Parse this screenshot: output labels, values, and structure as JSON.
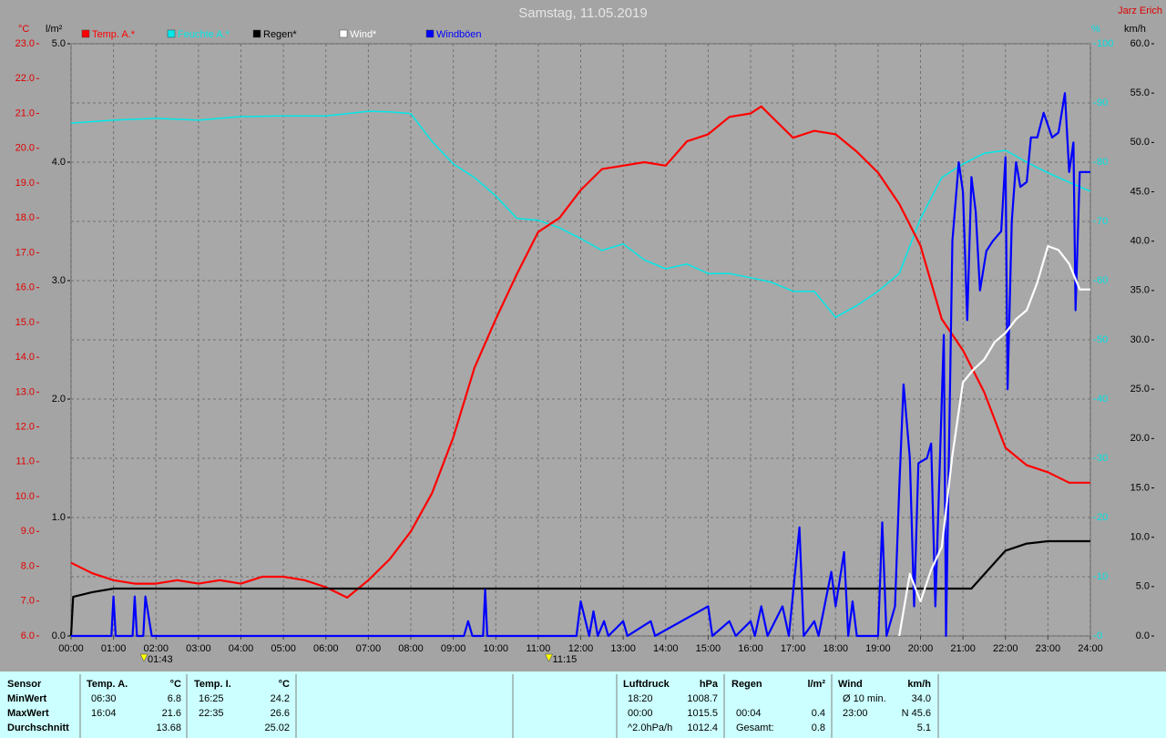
{
  "chart_data": {
    "type": "line",
    "title": "Samstag, 11.05.2019",
    "author": "Jarz Erich",
    "grid": true,
    "xlim": [
      0,
      24
    ],
    "xticks": [
      {
        "value": 0,
        "label": "00:00"
      },
      {
        "value": 1,
        "label": "01:00"
      },
      {
        "value": 2,
        "label": "02:00"
      },
      {
        "value": 3,
        "label": "03:00"
      },
      {
        "value": 4,
        "label": "04:00"
      },
      {
        "value": 5,
        "label": "05:00"
      },
      {
        "value": 6,
        "label": "06:00"
      },
      {
        "value": 7,
        "label": "07:00"
      },
      {
        "value": 8,
        "label": "08:00"
      },
      {
        "value": 9,
        "label": "09:00"
      },
      {
        "value": 10,
        "label": "10:00"
      },
      {
        "value": 11,
        "label": "11:00"
      },
      {
        "value": 12,
        "label": "12:00"
      },
      {
        "value": 13,
        "label": "13:00"
      },
      {
        "value": 14,
        "label": "14:00"
      },
      {
        "value": 15,
        "label": "15:00"
      },
      {
        "value": 16,
        "label": "16:00"
      },
      {
        "value": 17,
        "label": "17:00"
      },
      {
        "value": 18,
        "label": "18:00"
      },
      {
        "value": 19,
        "label": "19:00"
      },
      {
        "value": 20,
        "label": "20:00"
      },
      {
        "value": 21,
        "label": "21:00"
      },
      {
        "value": 22,
        "label": "22:00"
      },
      {
        "value": 23,
        "label": "23:00"
      },
      {
        "value": 24,
        "label": "24:00"
      }
    ],
    "axes": {
      "temp": {
        "unit": "°C",
        "color": "#e00000",
        "lim": [
          6,
          23
        ],
        "ticks": [
          {
            "value": 6,
            "label": "6.0"
          },
          {
            "value": 7,
            "label": "7.0"
          },
          {
            "value": 8,
            "label": "8.0"
          },
          {
            "value": 9,
            "label": "9.0"
          },
          {
            "value": 10,
            "label": "10.0"
          },
          {
            "value": 11,
            "label": "11.0"
          },
          {
            "value": 12,
            "label": "12.0"
          },
          {
            "value": 13,
            "label": "13.0"
          },
          {
            "value": 14,
            "label": "14.0"
          },
          {
            "value": 15,
            "label": "15.0"
          },
          {
            "value": 16,
            "label": "16.0"
          },
          {
            "value": 17,
            "label": "17.0"
          },
          {
            "value": 18,
            "label": "18.0"
          },
          {
            "value": 19,
            "label": "19.0"
          },
          {
            "value": 20,
            "label": "20.0"
          },
          {
            "value": 21,
            "label": "21.0"
          },
          {
            "value": 22,
            "label": "22.0"
          },
          {
            "value": 23,
            "label": "23.0"
          }
        ]
      },
      "rain": {
        "unit": "l/m²",
        "color": "#000000",
        "lim": [
          0,
          5
        ],
        "ticks": [
          {
            "value": 0,
            "label": "0.0"
          },
          {
            "value": 1,
            "label": "1.0"
          },
          {
            "value": 2,
            "label": "2.0"
          },
          {
            "value": 3,
            "label": "3.0"
          },
          {
            "value": 4,
            "label": "4.0"
          },
          {
            "value": 5,
            "label": "5.0"
          }
        ]
      },
      "humidity": {
        "unit": "%",
        "color": "#00e0e0",
        "lim": [
          0,
          100
        ],
        "ticks": [
          0,
          10,
          20,
          30,
          40,
          50,
          60,
          70,
          80,
          90,
          100
        ]
      },
      "wind": {
        "unit": "km/h",
        "color": "#000000",
        "lim": [
          0,
          60
        ],
        "ticks": [
          {
            "value": 0,
            "label": "0.0"
          },
          {
            "value": 5,
            "label": "5.0"
          },
          {
            "value": 10,
            "label": "10.0"
          },
          {
            "value": 15,
            "label": "15.0"
          },
          {
            "value": 20,
            "label": "20.0"
          },
          {
            "value": 25,
            "label": "25.0"
          },
          {
            "value": 30,
            "label": "30.0"
          },
          {
            "value": 35,
            "label": "35.0"
          },
          {
            "value": 40,
            "label": "40.0"
          },
          {
            "value": 45,
            "label": "45.0"
          },
          {
            "value": 50,
            "label": "50.0"
          },
          {
            "value": 55,
            "label": "55.0"
          },
          {
            "value": 60,
            "label": "60.0"
          }
        ]
      }
    },
    "series": [
      {
        "name": "Temp. A.*",
        "color": "#ff0000",
        "axis": "temp",
        "x": [
          0,
          0.5,
          1,
          1.5,
          2,
          2.5,
          3,
          3.5,
          4,
          4.5,
          5,
          5.5,
          6,
          6.5,
          7,
          7.5,
          8,
          8.5,
          9,
          9.5,
          10,
          10.5,
          11,
          11.5,
          12,
          12.5,
          13,
          13.5,
          14,
          14.5,
          15,
          15.5,
          16,
          16.25,
          16.5,
          17,
          17.5,
          18,
          18.5,
          19,
          19.5,
          20,
          20.5,
          21,
          21.5,
          22,
          22.5,
          23,
          23.5,
          24
        ],
        "values": [
          8.1,
          7.8,
          7.6,
          7.5,
          7.5,
          7.6,
          7.5,
          7.6,
          7.5,
          7.7,
          7.7,
          7.6,
          7.4,
          7.1,
          7.6,
          8.2,
          9.0,
          10.1,
          11.7,
          13.7,
          15.1,
          16.4,
          17.6,
          18.0,
          18.8,
          19.4,
          19.5,
          19.6,
          19.5,
          20.2,
          20.4,
          20.9,
          21.0,
          21.2,
          20.9,
          20.3,
          20.5,
          20.4,
          19.9,
          19.3,
          18.4,
          17.2,
          15.1,
          14.2,
          13.0,
          11.4,
          10.9,
          10.7,
          10.4,
          10.4
        ]
      },
      {
        "name": "Feuchte A.*",
        "color": "#00e8e8",
        "axis": "humidity",
        "x": [
          0,
          1,
          2,
          3,
          4,
          5,
          6,
          7,
          7.5,
          8,
          8.5,
          9,
          9.5,
          10,
          10.5,
          11,
          11.5,
          12,
          12.5,
          13,
          13.5,
          14,
          14.5,
          15,
          15.5,
          16,
          16.5,
          17,
          17.5,
          18,
          18.5,
          19,
          19.5,
          20,
          20.5,
          21,
          21.5,
          22,
          22.5,
          23,
          23.5,
          24
        ],
        "values": [
          86.6,
          87.1,
          87.4,
          87.1,
          87.7,
          87.8,
          87.8,
          88.6,
          88.5,
          88.2,
          83.5,
          79.7,
          77.4,
          74.3,
          70.5,
          70.2,
          68.9,
          67.1,
          65.1,
          66.2,
          63.5,
          62.0,
          62.8,
          61.2,
          61.2,
          60.5,
          59.7,
          58.2,
          58.2,
          53.8,
          55.8,
          58.2,
          61.2,
          70.5,
          77.4,
          79.7,
          81.5,
          82.0,
          80.0,
          78.2,
          76.6,
          75.1
        ]
      },
      {
        "name": "Regen*",
        "color": "#000000",
        "axis": "rain",
        "x": [
          0,
          0.05,
          0.5,
          1,
          21.2,
          21.5,
          22,
          22.5,
          23,
          24
        ],
        "values": [
          0,
          0.33,
          0.37,
          0.4,
          0.4,
          0.52,
          0.72,
          0.78,
          0.8,
          0.8
        ]
      },
      {
        "name": "Wind*",
        "color": "#ffffff",
        "axis": "wind",
        "x": [
          19.5,
          19.75,
          20,
          20.25,
          20.5,
          20.75,
          21,
          21.25,
          21.5,
          21.75,
          22,
          22.25,
          22.5,
          22.75,
          23,
          23.25,
          23.5,
          23.75,
          24
        ],
        "values": [
          0,
          6.3,
          3.5,
          6.7,
          9.0,
          18.3,
          25.7,
          27.0,
          28.0,
          29.8,
          30.7,
          32.1,
          33.0,
          35.8,
          39.5,
          39.1,
          37.7,
          35.1,
          35.1
        ]
      },
      {
        "name": "Windböen",
        "color": "#0000ff",
        "axis": "wind",
        "x": [
          0,
          0.95,
          1.0,
          1.05,
          1.45,
          1.5,
          1.55,
          1.7,
          1.75,
          1.9,
          9.25,
          9.35,
          9.45,
          9.7,
          9.75,
          9.8,
          11.9,
          12.0,
          12.2,
          12.3,
          12.4,
          12.55,
          12.65,
          13.0,
          13.1,
          13.65,
          13.75,
          15.0,
          15.1,
          15.5,
          15.65,
          16.0,
          16.1,
          16.25,
          16.4,
          16.75,
          16.9,
          17.15,
          17.25,
          17.5,
          17.6,
          17.9,
          18.0,
          18.2,
          18.3,
          18.4,
          18.5,
          19.0,
          19.1,
          19.2,
          19.4,
          19.5,
          19.6,
          19.75,
          19.85,
          19.95,
          20.15,
          20.25,
          20.35,
          20.55,
          20.6,
          20.75,
          20.9,
          21.0,
          21.1,
          21.2,
          21.3,
          21.4,
          21.55,
          21.7,
          21.9,
          22.0,
          22.05,
          22.15,
          22.25,
          22.35,
          22.5,
          22.6,
          22.75,
          22.9,
          23.1,
          23.25,
          23.4,
          23.5,
          23.6,
          23.65,
          23.75,
          23.9,
          24.0
        ],
        "values": [
          0,
          0,
          4,
          0,
          0,
          4,
          0,
          0,
          4,
          0,
          0,
          1.5,
          0,
          0,
          4.7,
          0,
          0,
          3.5,
          0,
          2.5,
          0,
          1.5,
          0,
          1.5,
          0,
          1.5,
          0,
          3,
          0,
          1.5,
          0,
          1.5,
          0,
          3,
          0,
          3,
          0,
          11,
          0,
          1.5,
          0,
          6.5,
          3,
          8.5,
          0,
          3.5,
          0,
          0,
          11.5,
          0,
          3,
          15,
          25.5,
          18,
          3,
          17.5,
          18,
          19.5,
          3,
          30.5,
          0,
          40,
          48,
          45,
          32,
          46.5,
          43,
          35,
          39,
          40,
          41,
          48.5,
          25,
          42,
          48,
          45.5,
          46,
          50.5,
          50.5,
          53,
          50.5,
          51,
          55,
          47,
          50,
          33,
          47,
          47,
          47
        ]
      }
    ],
    "annotations": [
      "01:43",
      "11:15"
    ]
  },
  "stats": {
    "row_labels": [
      "Sensor",
      "MinWert",
      "MaxWert",
      "Durchschnitt"
    ],
    "groups": [
      {
        "title": "Temp. A.",
        "unit": "°C",
        "rows": [
          [
            "06:30",
            "6.8"
          ],
          [
            "16:04",
            "21.6"
          ],
          [
            null,
            "13.68"
          ]
        ]
      },
      {
        "title": "Temp. I.",
        "unit": "°C",
        "rows": [
          [
            "16:25",
            "24.2"
          ],
          [
            "22:35",
            "26.6"
          ],
          [
            null,
            "25.02"
          ]
        ]
      },
      {
        "title": "Luftdruck",
        "unit": "hPa",
        "rows": [
          [
            "18:20",
            "1008.7"
          ],
          [
            "00:00",
            "1015.5"
          ],
          [
            "^2.0hPa/h",
            "1012.4"
          ]
        ]
      },
      {
        "title": "Regen",
        "unit": "l/m²",
        "rows": [
          [
            null,
            null
          ],
          [
            "00:04",
            "0.4"
          ],
          [
            "Gesamt:",
            "0.8"
          ]
        ]
      },
      {
        "title": "Wind",
        "unit": "km/h",
        "rows": [
          [
            "Ø 10 min.",
            "34.0"
          ],
          [
            "23:00",
            "N 45.6"
          ],
          [
            null,
            "5.1"
          ]
        ]
      }
    ]
  }
}
